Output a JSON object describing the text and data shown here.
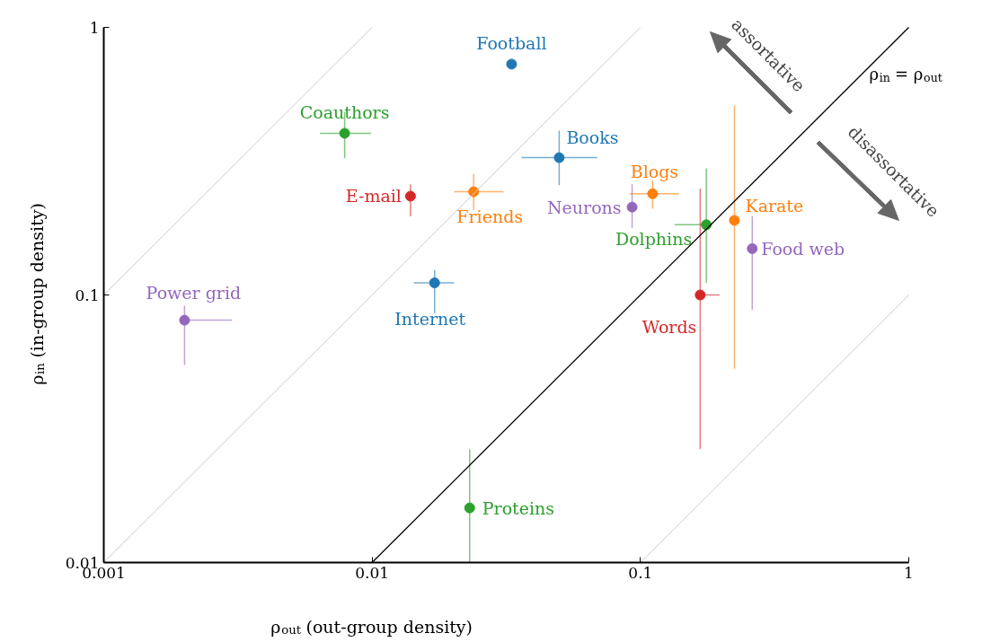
{
  "chart_data": {
    "type": "scatter",
    "xlabel": "ρ$_{out}$ (out-group density)",
    "ylabel": "ρ$_{in}$ (in-group density)",
    "log": "xy",
    "xlim": [
      0.001,
      1
    ],
    "ylim": [
      0.01,
      1
    ],
    "xticks": [
      0.001,
      0.01,
      0.1,
      1
    ],
    "yticks": [
      0.01,
      0.1,
      1
    ],
    "grid": false,
    "marker": "circle",
    "annotations": [
      "assortative",
      "disassortative"
    ],
    "series": [
      {
        "name": "Football",
        "color": "#1f77b4",
        "x": [
          0.0331
        ],
        "values": [
          0.729
        ]
      },
      {
        "name": "Coauthors",
        "color": "#2ca02c",
        "x": [
          0.0079
        ],
        "values": [
          0.402
        ],
        "errors": [
          [
            0.324,
            0.484
          ]
        ],
        "xerrors": [
          [
            0.0064,
            0.0099
          ]
        ]
      },
      {
        "name": "Books",
        "color": "#1f77b4",
        "x": [
          0.0498
        ],
        "values": [
          0.326
        ],
        "errors": [
          [
            0.257,
            0.411
          ]
        ],
        "xerrors": [
          [
            0.036,
            0.069
          ]
        ]
      },
      {
        "name": "E-mail",
        "color": "#d62728",
        "x": [
          0.0139
        ],
        "values": [
          0.234
        ],
        "errors": [
          [
            0.197,
            0.259
          ]
        ]
      },
      {
        "name": "Friends",
        "color": "#ff7f0e",
        "x": [
          0.0239
        ],
        "values": [
          0.243
        ],
        "errors": [
          [
            0.208,
            0.284
          ]
        ],
        "xerrors": [
          [
            0.0202,
            0.0309
          ]
        ]
      },
      {
        "name": "Blogs",
        "color": "#ff7f0e",
        "x": [
          0.111
        ],
        "values": [
          0.239
        ],
        "errors": [
          [
            0.21,
            0.269
          ]
        ],
        "xerrors": [
          [
            0.091,
            0.139
          ]
        ]
      },
      {
        "name": "Neurons",
        "color": "#9467bd",
        "x": [
          0.0931
        ],
        "values": [
          0.213
        ],
        "errors": [
          [
            0.178,
            0.259
          ]
        ]
      },
      {
        "name": "Dolphins",
        "color": "#2ca02c",
        "x": [
          0.176
        ],
        "values": [
          0.183
        ],
        "errors": [
          [
            0.111,
            0.297
          ]
        ],
        "xerrors": [
          [
            0.134,
            0.182
          ]
        ]
      },
      {
        "name": "Karate",
        "color": "#ff7f0e",
        "x": [
          0.224
        ],
        "values": [
          0.19
        ],
        "errors": [
          [
            0.053,
            0.511
          ]
        ]
      },
      {
        "name": "Food web",
        "color": "#9467bd",
        "x": [
          0.261
        ],
        "values": [
          0.149
        ],
        "errors": [
          [
            0.088,
            0.197
          ]
        ]
      },
      {
        "name": "Words",
        "color": "#d62728",
        "x": [
          0.167
        ],
        "values": [
          0.1
        ],
        "errors": [
          [
            0.0265,
            0.25
          ]
        ],
        "xerrors": [
          [
            0.167,
            0.197
          ]
        ]
      },
      {
        "name": "Internet",
        "color": "#1f77b4",
        "x": [
          0.0171
        ],
        "values": [
          0.111
        ],
        "errors": [
          [
            0.0855,
            0.124
          ]
        ],
        "xerrors": [
          [
            0.0143,
            0.0202
          ]
        ]
      },
      {
        "name": "Power grid",
        "color": "#9467bd",
        "x": [
          0.002
        ],
        "values": [
          0.0805
        ],
        "errors": [
          [
            0.0547,
            0.0912
          ]
        ],
        "xerrors": [
          [
            0.002,
            0.003
          ]
        ]
      },
      {
        "name": "Proteins",
        "color": "#2ca02c",
        "x": [
          0.0231
        ],
        "values": [
          0.016
        ],
        "errors": [
          [
            0.01,
            0.0265
          ]
        ]
      },
      {
        "type": "line",
        "marker": "none",
        "color": "#cccccc",
        "x": [
          0.001,
          0.01
        ],
        "values": [
          0.1,
          1
        ]
      },
      {
        "type": "line",
        "marker": "none",
        "color": "#cccccc",
        "x": [
          0.001,
          0.1
        ],
        "values": [
          0.01,
          1
        ]
      },
      {
        "type": "line",
        "marker": "none",
        "color": "#cccccc",
        "x": [
          0.1,
          1
        ],
        "values": [
          0.01,
          0.1
        ]
      },
      {
        "type": "line",
        "marker": "none",
        "name": "ρ$_{in}$ = ρ$_{out}$",
        "color": "#000000",
        "x": [
          0.01,
          1
        ],
        "values": [
          0.01,
          1
        ]
      }
    ]
  }
}
